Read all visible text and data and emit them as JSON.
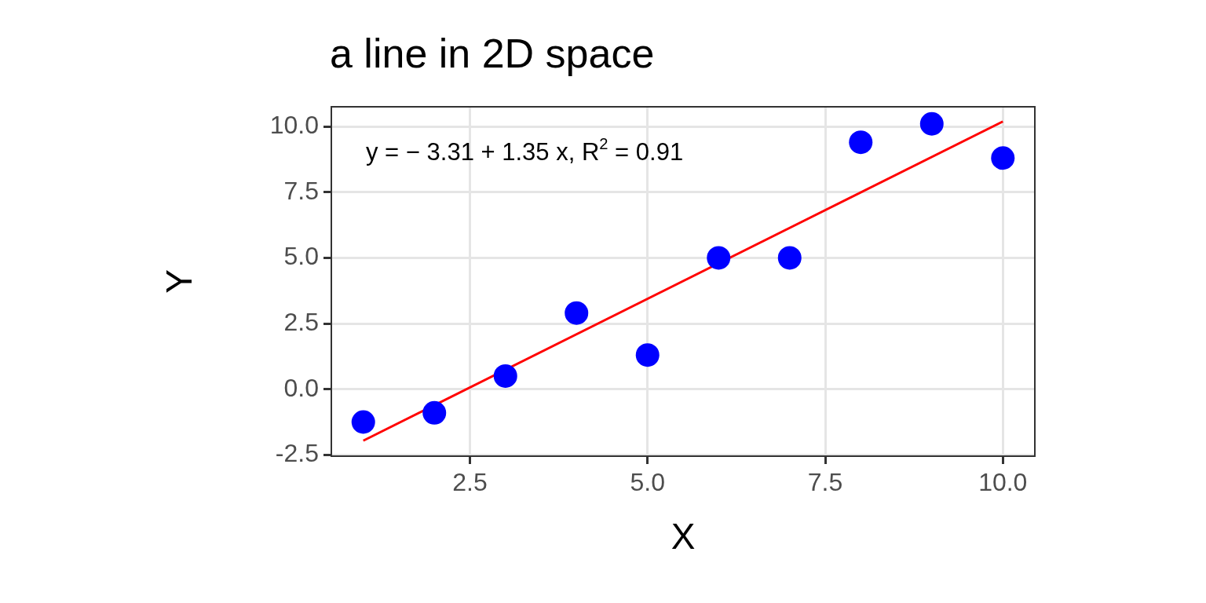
{
  "chart_data": {
    "type": "scatter",
    "title": "a line in 2D space",
    "xlabel": "X",
    "ylabel": "Y",
    "xlim": [
      0.55,
      10.45
    ],
    "xticks": [
      2.5,
      {
        "value": 5,
        "label": "5.0"
      },
      7.5,
      {
        "value": 10,
        "label": "10.0"
      }
    ],
    "ylim": [
      -2.55,
      10.75
    ],
    "yticks": [
      -2.5,
      {
        "value": 0,
        "label": "0.0"
      },
      2.5,
      {
        "value": 5,
        "label": "5.0"
      },
      7.5,
      {
        "value": 10,
        "label": "10.0"
      }
    ],
    "grid": true,
    "marker": "circle",
    "annotations": [
      "y = − 3.31 + 1.35 x, R$^{2}$ = 0.91"
    ],
    "series": [
      {
        "type": "scatter",
        "color": "#0000ff",
        "x": [
          1,
          2,
          3,
          4,
          5,
          6,
          7,
          8,
          9,
          10
        ],
        "values": [
          -1.25,
          -0.9,
          0.5,
          2.9,
          1.3,
          5.0,
          5.0,
          9.4,
          10.1,
          8.8
        ]
      },
      {
        "type": "line",
        "color": "#ff0000",
        "marker": "none",
        "x": [
          1,
          10
        ],
        "values": [
          -1.96,
          10.19
        ]
      }
    ]
  }
}
